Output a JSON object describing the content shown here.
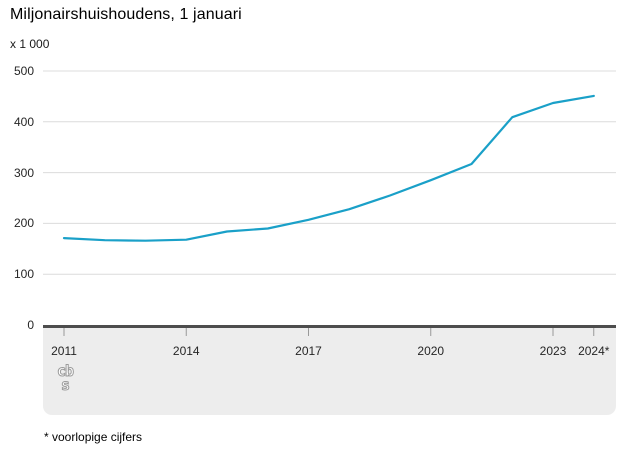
{
  "header": {
    "title": "Miljonairshuishoudens, 1 januari",
    "unit_label": "x 1 000"
  },
  "footnote": "* voorlopige cijfers",
  "logo": {
    "name": "cbs-logo",
    "line1": "cb",
    "line2": "s"
  },
  "colors": {
    "line": "#1aa0c8",
    "grid": "#dcdcdc",
    "zero_axis": "#4d4d4d",
    "band": "#ededed",
    "tick": "#999999",
    "text": "#262626"
  },
  "chart_data": {
    "type": "line",
    "title": "Miljonairshuishoudens, 1 januari",
    "unit": "x 1 000",
    "series_name": "Miljonairshuishoudens (x 1 000)",
    "x": [
      2011,
      2012,
      2013,
      2014,
      2015,
      2016,
      2017,
      2018,
      2019,
      2020,
      2021,
      2022,
      2023,
      2024
    ],
    "values": [
      171,
      167,
      166,
      168,
      184,
      190,
      207,
      228,
      255,
      285,
      317,
      409,
      437,
      451
    ],
    "ylim": [
      0,
      500
    ],
    "yticks": [
      0,
      100,
      200,
      300,
      400,
      500
    ],
    "xticks": [
      {
        "year": 2011,
        "label": "2011"
      },
      {
        "year": 2014,
        "label": "2014"
      },
      {
        "year": 2017,
        "label": "2017"
      },
      {
        "year": 2020,
        "label": "2020"
      },
      {
        "year": 2023,
        "label": "2023"
      },
      {
        "year": 2024,
        "label": "2024*"
      }
    ],
    "grid": true,
    "legend": "none",
    "xlabel": "",
    "ylabel": "x 1 000"
  }
}
